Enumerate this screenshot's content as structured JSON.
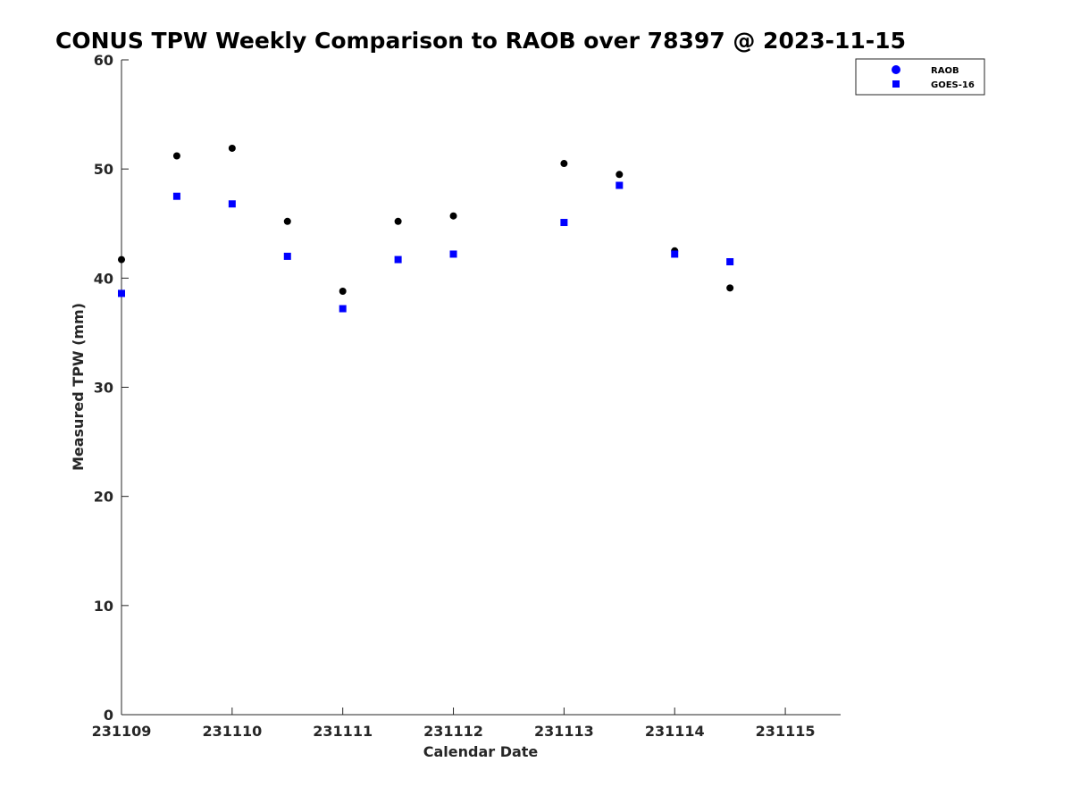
{
  "chart_data": {
    "type": "scatter",
    "title": "CONUS TPW Weekly Comparison to RAOB over 78397 @ 2023-11-15",
    "xlabel": "Calendar Date",
    "ylabel": "Measured TPW (mm)",
    "xlim": [
      0,
      6.5
    ],
    "ylim": [
      0,
      60
    ],
    "x_ticks": [
      0,
      1,
      2,
      3,
      4,
      5,
      6
    ],
    "x_tick_labels": [
      "231109",
      "231110",
      "231111",
      "231112",
      "231113",
      "231114",
      "231115"
    ],
    "y_ticks": [
      0,
      10,
      20,
      30,
      40,
      50,
      60
    ],
    "y_tick_labels": [
      "0",
      "10",
      "20",
      "30",
      "40",
      "50",
      "60"
    ],
    "grid": false,
    "legend_position": "top-right",
    "series": [
      {
        "name": "RAOB",
        "marker": "circle",
        "color": "#000000",
        "legend_color": "#0000ff",
        "x": [
          0,
          0.5,
          1,
          1.5,
          2,
          2.5,
          3,
          4,
          4.5,
          5,
          5.5
        ],
        "y": [
          41.7,
          51.2,
          51.9,
          45.2,
          38.8,
          45.2,
          45.7,
          50.5,
          49.5,
          42.5,
          39.1
        ]
      },
      {
        "name": "GOES-16",
        "marker": "square",
        "color": "#0000ff",
        "legend_color": "#0000ff",
        "x": [
          0,
          0.5,
          1,
          1.5,
          2,
          2.5,
          3,
          4,
          4.5,
          5,
          5.5
        ],
        "y": [
          38.6,
          47.5,
          46.8,
          42.0,
          37.2,
          41.7,
          42.2,
          45.1,
          48.5,
          42.2,
          41.5
        ]
      }
    ]
  }
}
